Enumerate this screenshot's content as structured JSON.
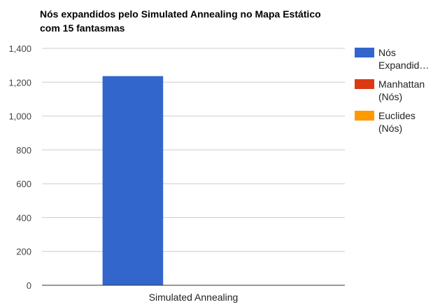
{
  "chart_data": {
    "type": "bar",
    "title_lines": [
      "Nós expandidos pelo Simulated Annealing no Mapa Estático",
      "com 15 fantasmas"
    ],
    "categories": [
      "Simulated Annealing"
    ],
    "series": [
      {
        "name": "Nós expandidos",
        "legend_lines": [
          "Nós",
          "Expandid…"
        ],
        "color": "#3366cc",
        "values": [
          1236
        ]
      },
      {
        "name": "Manhattan (Nós)",
        "legend_lines": [
          "Manhattan",
          "(Nós)"
        ],
        "color": "#dc3912",
        "values": [
          0
        ]
      },
      {
        "name": "Euclides (Nós)",
        "legend_lines": [
          "Euclides",
          "(Nós)"
        ],
        "color": "#ff9900",
        "values": [
          0
        ]
      }
    ],
    "ylim": [
      0,
      1400
    ],
    "yticks": [
      0,
      200,
      400,
      600,
      800,
      1000,
      1200,
      1400
    ],
    "ytick_labels": [
      "0",
      "200",
      "400",
      "600",
      "800",
      "1,000",
      "1,200",
      "1,400"
    ],
    "grid": true,
    "legend_position": "right"
  }
}
